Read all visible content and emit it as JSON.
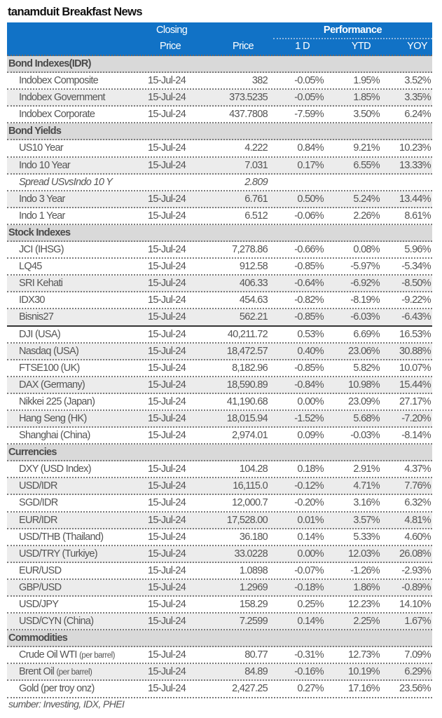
{
  "title": "tanamduit Breakfast News",
  "header": {
    "closing_line1": "Closing",
    "closing_line2": "Price",
    "price": "Price",
    "performance": "Performance",
    "d1": "1 D",
    "ytd": "YTD",
    "yoy": "YOY"
  },
  "sections": [
    {
      "label": "Bond Indexes(IDR)",
      "rows": [
        {
          "name": "Indobex Composite",
          "date": "15-Jul-24",
          "price": "382",
          "d1": "-0.05%",
          "ytd": "1.95%",
          "yoy": "3.52%",
          "shade": false
        },
        {
          "name": "Indobex Government",
          "date": "15-Jul-24",
          "price": "373.5235",
          "d1": "-0.05%",
          "ytd": "1.85%",
          "yoy": "3.35%",
          "shade": true
        },
        {
          "name": "Indobex Corporate",
          "date": "15-Jul-24",
          "price": "437.7808",
          "d1": "-7.59%",
          "ytd": "3.50%",
          "yoy": "6.24%",
          "shade": false
        }
      ]
    },
    {
      "label": "Bond Yields",
      "rows": [
        {
          "name": "US10 Year",
          "date": "15-Jul-24",
          "price": "4.222",
          "d1": "0.84%",
          "ytd": "9.21%",
          "yoy": "10.23%",
          "shade": false
        },
        {
          "name": "Indo 10 Year",
          "date": "15-Jul-24",
          "price": "7.031",
          "d1": "0.17%",
          "ytd": "6.55%",
          "yoy": "13.33%",
          "shade": true
        },
        {
          "name": "Spread USvsIndo 10 Y",
          "date": "",
          "price": "2.809",
          "d1": "",
          "ytd": "",
          "yoy": "",
          "shade": false,
          "italic": true
        },
        {
          "name": "Indo 3 Year",
          "date": "15-Jul-24",
          "price": "6.761",
          "d1": "0.50%",
          "ytd": "5.24%",
          "yoy": "13.44%",
          "shade": true
        },
        {
          "name": "Indo 1 Year",
          "date": "15-Jul-24",
          "price": "6.512",
          "d1": "-0.06%",
          "ytd": "2.26%",
          "yoy": "8.61%",
          "shade": false
        }
      ]
    },
    {
      "label": "Stock Indexes",
      "rows": [
        {
          "name": "JCI (IHSG)",
          "date": "15-Jul-24",
          "price": "7,278.86",
          "d1": "-0.66%",
          "ytd": "0.08%",
          "yoy": "5.96%",
          "shade": false
        },
        {
          "name": "LQ45",
          "date": "15-Jul-24",
          "price": "912.58",
          "d1": "-0.85%",
          "ytd": "-5.97%",
          "yoy": "-5.34%",
          "shade": false
        },
        {
          "name": "SRI Kehati",
          "date": "15-Jul-24",
          "price": "406.33",
          "d1": "-0.64%",
          "ytd": "-6.92%",
          "yoy": "-8.50%",
          "shade": true
        },
        {
          "name": "IDX30",
          "date": "15-Jul-24",
          "price": "454.63",
          "d1": "-0.82%",
          "ytd": "-8.19%",
          "yoy": "-9.22%",
          "shade": false
        },
        {
          "name": "Bisnis27",
          "date": "15-Jul-24",
          "price": "562.21",
          "d1": "-0.85%",
          "ytd": "-6.03%",
          "yoy": "-6.43%",
          "shade": true,
          "solid": true
        },
        {
          "name": "DJI (USA)",
          "date": "15-Jul-24",
          "price": "40,211.72",
          "d1": "0.53%",
          "ytd": "6.69%",
          "yoy": "16.53%",
          "shade": false
        },
        {
          "name": "Nasdaq (USA)",
          "date": "15-Jul-24",
          "price": "18,472.57",
          "d1": "0.40%",
          "ytd": "23.06%",
          "yoy": "30.88%",
          "shade": true
        },
        {
          "name": "FTSE100 (UK)",
          "date": "15-Jul-24",
          "price": "8,182.96",
          "d1": "-0.85%",
          "ytd": "5.82%",
          "yoy": "10.07%",
          "shade": false
        },
        {
          "name": "DAX (Germany)",
          "date": "15-Jul-24",
          "price": "18,590.89",
          "d1": "-0.84%",
          "ytd": "10.98%",
          "yoy": "15.44%",
          "shade": true
        },
        {
          "name": "Nikkei 225 (Japan)",
          "date": "15-Jul-24",
          "price": "41,190.68",
          "d1": "0.00%",
          "ytd": "23.09%",
          "yoy": "27.17%",
          "shade": false
        },
        {
          "name": "Hang Seng (HK)",
          "date": "15-Jul-24",
          "price": "18,015.94",
          "d1": "-1.52%",
          "ytd": "5.68%",
          "yoy": "-7.20%",
          "shade": true
        },
        {
          "name": "Shanghai (China)",
          "date": "15-Jul-24",
          "price": "2,974.01",
          "d1": "0.09%",
          "ytd": "-0.03%",
          "yoy": "-8.14%",
          "shade": false
        }
      ]
    },
    {
      "label": "Currencies",
      "rows": [
        {
          "name": "DXY (USD Index)",
          "date": "15-Jul-24",
          "price": "104.28",
          "d1": "0.18%",
          "ytd": "2.91%",
          "yoy": "4.37%",
          "shade": false
        },
        {
          "name": "USD/IDR",
          "date": "15-Jul-24",
          "price": "16,115.0",
          "d1": "-0.12%",
          "ytd": "4.71%",
          "yoy": "7.76%",
          "shade": true
        },
        {
          "name": "SGD/IDR",
          "date": "15-Jul-24",
          "price": "12,000.7",
          "d1": "-0.20%",
          "ytd": "3.16%",
          "yoy": "6.32%",
          "shade": false
        },
        {
          "name": "EUR/IDR",
          "date": "15-Jul-24",
          "price": "17,528.00",
          "d1": "0.01%",
          "ytd": "3.57%",
          "yoy": "4.81%",
          "shade": true
        },
        {
          "name": "USD/THB (Thailand)",
          "date": "15-Jul-24",
          "price": "36.180",
          "d1": "0.14%",
          "ytd": "5.33%",
          "yoy": "4.60%",
          "shade": false
        },
        {
          "name": "USD/TRY (Turkiye)",
          "date": "15-Jul-24",
          "price": "33.0228",
          "d1": "0.00%",
          "ytd": "12.03%",
          "yoy": "26.08%",
          "shade": true
        },
        {
          "name": "EUR/USD",
          "date": "15-Jul-24",
          "price": "1.0898",
          "d1": "-0.07%",
          "ytd": "-1.26%",
          "yoy": "-2.93%",
          "shade": false
        },
        {
          "name": "GBP/USD",
          "date": "15-Jul-24",
          "price": "1.2969",
          "d1": "-0.18%",
          "ytd": "1.86%",
          "yoy": "-0.89%",
          "shade": true
        },
        {
          "name": "USD/JPY",
          "date": "15-Jul-24",
          "price": "158.29",
          "d1": "0.25%",
          "ytd": "12.23%",
          "yoy": "14.10%",
          "shade": false
        },
        {
          "name": "USD/CYN (China)",
          "date": "15-Jul-24",
          "price": "7.2599",
          "d1": "0.14%",
          "ytd": "2.25%",
          "yoy": "1.67%",
          "shade": true
        }
      ]
    },
    {
      "label": "Commodities",
      "rows": [
        {
          "name": "Crude Oil WTI",
          "unit": "(per barrel)",
          "date": "15-Jul-24",
          "price": "80.77",
          "d1": "-0.31%",
          "ytd": "12.73%",
          "yoy": "7.09%",
          "shade": false
        },
        {
          "name": "Brent Oil",
          "unit": "(per barrel)",
          "date": "15-Jul-24",
          "price": "84.89",
          "d1": "-0.16%",
          "ytd": "10.19%",
          "yoy": "6.29%",
          "shade": true
        },
        {
          "name": "Gold (per troy onz)",
          "date": "15-Jul-24",
          "price": "2,427.25",
          "d1": "0.27%",
          "ytd": "17.16%",
          "yoy": "23.56%",
          "shade": false
        }
      ]
    }
  ],
  "footer": "sumber: Investing, IDX, PHEI",
  "colors": {
    "header_bg": "#1172c6",
    "section_bg": "#d9d9d9",
    "shade_bg": "#ececec",
    "text": "#555555"
  }
}
